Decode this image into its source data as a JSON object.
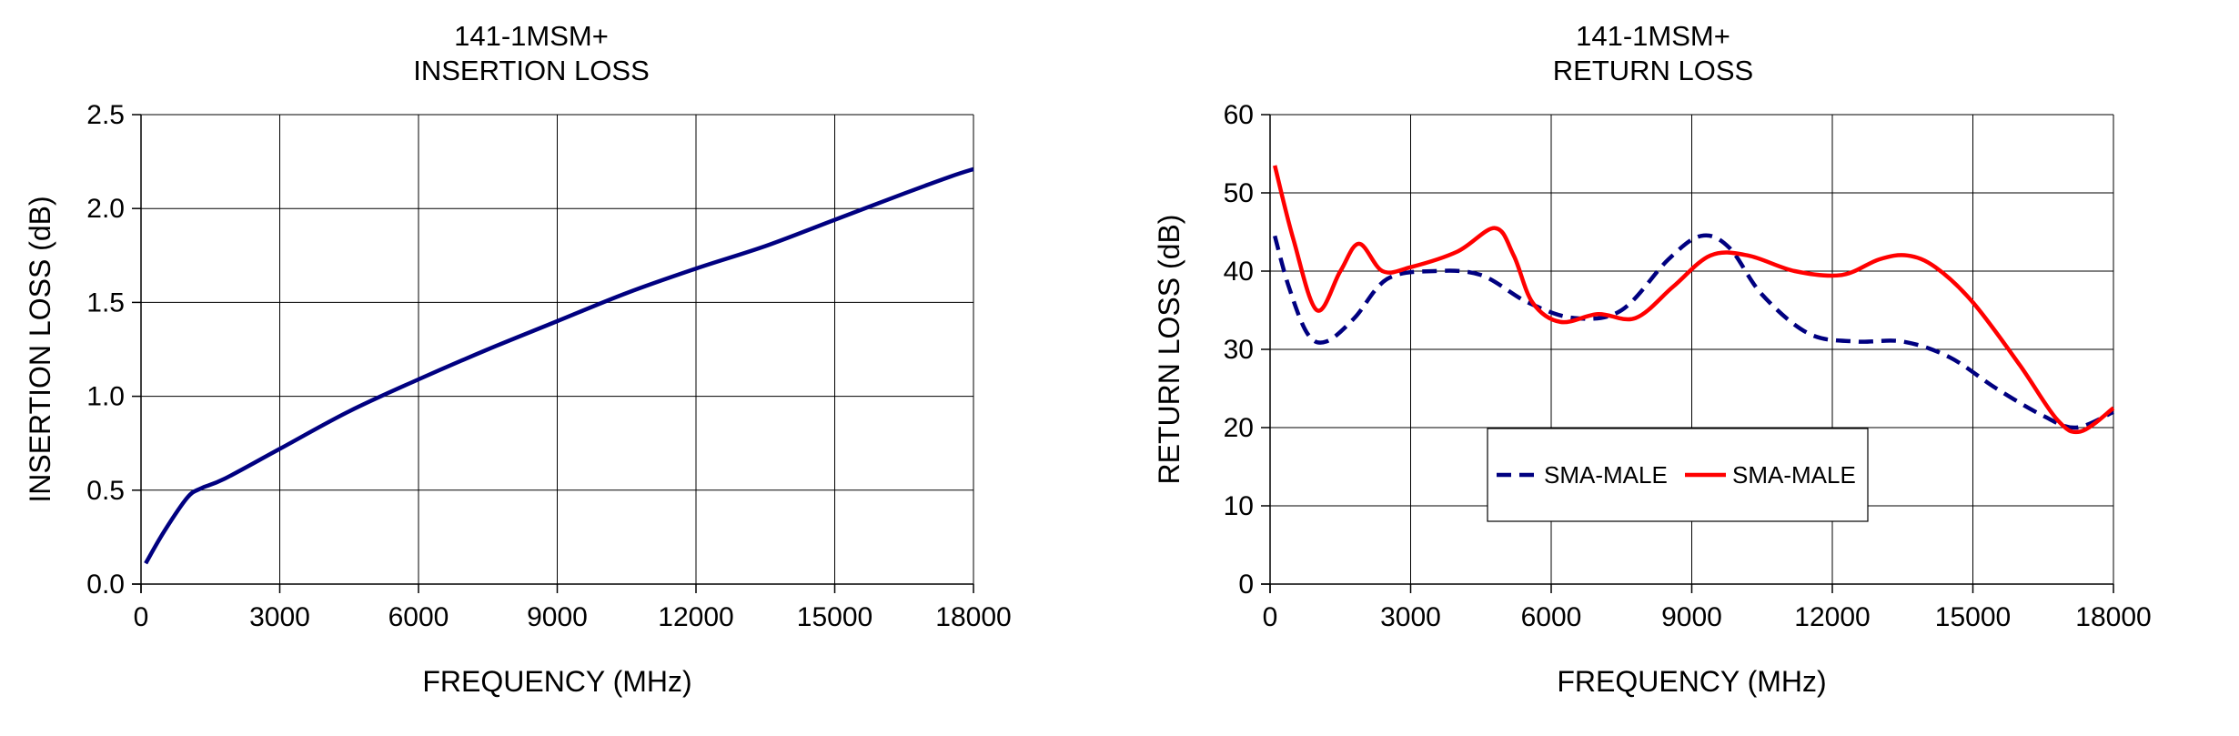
{
  "chart_data": [
    {
      "type": "line",
      "title": [
        "141-1MSM+",
        "INSERTION LOSS"
      ],
      "xlabel": "FREQUENCY (MHz)",
      "ylabel": "INSERTION LOSS (dB)",
      "xlim": [
        0,
        18000
      ],
      "ylim": [
        0,
        2.5
      ],
      "xticks": [
        "0",
        "3000",
        "6000",
        "9000",
        "12000",
        "15000",
        "18000"
      ],
      "yticks": [
        "0.0",
        "0.5",
        "1.0",
        "1.5",
        "2.0",
        "2.5"
      ],
      "grid": true,
      "legend": null,
      "series": [
        {
          "color": "#000080",
          "dash": "solid",
          "x": [
            100,
            500,
            1000,
            1300,
            1800,
            3000,
            4500,
            6000,
            7500,
            9000,
            10500,
            12000,
            13500,
            15000,
            16500,
            17500,
            18000
          ],
          "y": [
            0.11,
            0.28,
            0.46,
            0.51,
            0.56,
            0.72,
            0.92,
            1.09,
            1.25,
            1.4,
            1.55,
            1.68,
            1.8,
            1.94,
            2.08,
            2.17,
            2.21
          ]
        }
      ]
    },
    {
      "type": "line",
      "title": [
        "141-1MSM+",
        "RETURN LOSS"
      ],
      "xlabel": "FREQUENCY (MHz)",
      "ylabel": "RETURN LOSS (dB)",
      "xlim": [
        0,
        18000
      ],
      "ylim": [
        0,
        60
      ],
      "xticks": [
        "0",
        "3000",
        "6000",
        "9000",
        "12000",
        "15000",
        "18000"
      ],
      "yticks": [
        "0",
        "10",
        "20",
        "30",
        "40",
        "50",
        "60"
      ],
      "grid": true,
      "legend": "inside-bottom-center",
      "series": [
        {
          "name": "SMA-MALE",
          "color": "#000080",
          "dash": "dashed",
          "x": [
            100,
            400,
            800,
            1200,
            1800,
            2500,
            3500,
            4500,
            5500,
            6500,
            7500,
            8500,
            9200,
            9800,
            10500,
            11500,
            12500,
            13500,
            14500,
            15500,
            16500,
            17200,
            18000
          ],
          "y": [
            44.5,
            38,
            32,
            31,
            34,
            39,
            40,
            39.5,
            36,
            34,
            35,
            41.5,
            44.5,
            43,
            37,
            32,
            31,
            31,
            29,
            25,
            21.5,
            20,
            22
          ]
        },
        {
          "name": "SMA-MALE",
          "color": "#ff0000",
          "dash": "solid",
          "x": [
            100,
            500,
            1000,
            1500,
            1900,
            2400,
            3000,
            4000,
            4800,
            5200,
            5600,
            6200,
            7000,
            7800,
            8600,
            9400,
            10200,
            11200,
            12200,
            13000,
            13600,
            14200,
            15000,
            16000,
            16800,
            17300,
            18000
          ],
          "y": [
            53.5,
            44,
            35,
            40,
            43.5,
            40,
            40.5,
            42.5,
            45.5,
            42,
            36,
            33.5,
            34.5,
            34,
            38,
            42,
            42,
            40,
            39.5,
            41.5,
            42,
            40.5,
            36,
            28,
            21,
            19.5,
            22.5
          ]
        }
      ]
    }
  ]
}
